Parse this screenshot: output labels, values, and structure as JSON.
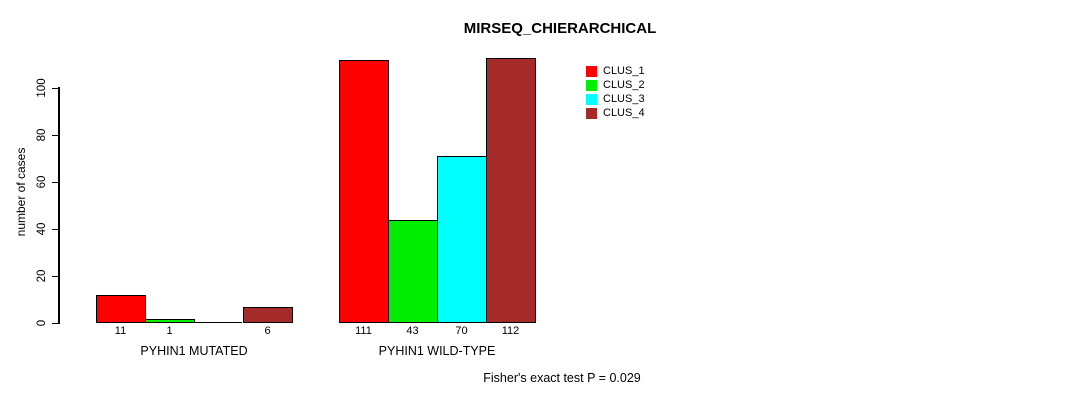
{
  "title": "MIRSEQ_CHIERARCHICAL",
  "footer": "Fisher's exact test P = 0.029",
  "chart_data": {
    "type": "bar",
    "title": "MIRSEQ_CHIERARCHICAL",
    "ylabel": "number of cases",
    "xlabel": "",
    "ylim": [
      0,
      115
    ],
    "yticks": [
      0,
      20,
      40,
      60,
      80,
      100
    ],
    "grid": false,
    "legend_position": "top-right",
    "categories": [
      "PYHIN1 MUTATED",
      "PYHIN1 WILD-TYPE"
    ],
    "series": [
      {
        "name": "CLUS_1",
        "color": "#ff0000",
        "values": [
          11,
          111
        ]
      },
      {
        "name": "CLUS_2",
        "color": "#00ee00",
        "values": [
          1,
          43
        ]
      },
      {
        "name": "CLUS_3",
        "color": "#00ffff",
        "values": [
          0,
          70
        ]
      },
      {
        "name": "CLUS_4",
        "color": "#a52a2a",
        "values": [
          6,
          112
        ]
      }
    ],
    "bar_labels": [
      [
        "11",
        "1",
        "",
        "6"
      ],
      [
        "111",
        "43",
        "70",
        "112"
      ]
    ],
    "annotation": "Fisher's exact test P = 0.029"
  }
}
